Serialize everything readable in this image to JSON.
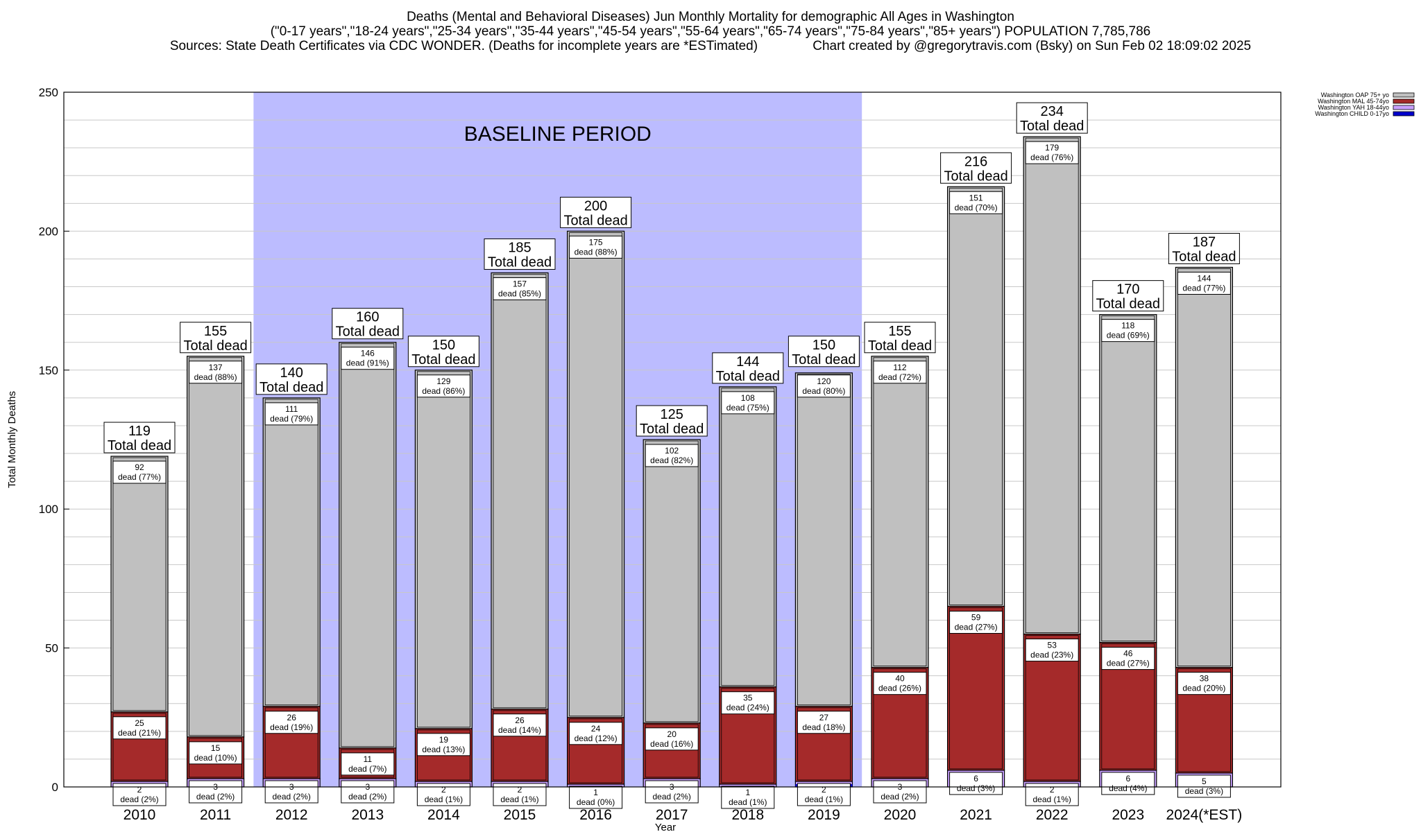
{
  "chart_data": {
    "type": "bar",
    "stacked": true,
    "title": "Deaths (Mental and Behavioral Diseases) Jun Monthly Mortality for demographic All Ages in Washington",
    "subtitle": "(\"0-17 years\",\"18-24 years\",\"25-34 years\",\"35-44 years\",\"45-54 years\",\"55-64 years\",\"65-74 years\",\"75-84 years\",\"85+ years\") POPULATION 7,785,786",
    "sources": "Sources: State Death Certificates via CDC WONDER. (Deaths for incomplete years are *ESTimated)",
    "credit": "Chart created by @gregorytravis.com (Bsky) on Sun Feb 02 18:09:02 2025",
    "xlabel": "Year",
    "ylabel": "Total Monthly Deaths",
    "ylim": [
      0,
      250
    ],
    "yticks": [
      0,
      50,
      100,
      150,
      200,
      250
    ],
    "grid": true,
    "legend_position": "top-right",
    "baseline_label": "BASELINE PERIOD",
    "baseline_range": [
      "2012",
      "2019"
    ],
    "categories": [
      "2010",
      "2011",
      "2012",
      "2013",
      "2014",
      "2015",
      "2016",
      "2017",
      "2018",
      "2019",
      "2020",
      "2021",
      "2022",
      "2023",
      "2024(*EST)"
    ],
    "totals": [
      119,
      155,
      140,
      160,
      150,
      185,
      200,
      125,
      144,
      150,
      155,
      216,
      234,
      170,
      187
    ],
    "total_caption": "Total dead",
    "series": [
      {
        "name": "Washington CHILD 0-17yo",
        "color": "#0000cc",
        "values": [
          0,
          0,
          0,
          0,
          0,
          0,
          0,
          0,
          0,
          1,
          0,
          0,
          0,
          0,
          0
        ],
        "labels": []
      },
      {
        "name": "Washington YAH 18-44yo",
        "color": "#c8a0ff",
        "values": [
          2,
          3,
          3,
          3,
          2,
          2,
          1,
          3,
          1,
          2,
          3,
          6,
          2,
          6,
          5
        ],
        "labels": [
          "dead (2%)",
          "dead (2%)",
          "dead (2%)",
          "dead (2%)",
          "dead (1%)",
          "dead (1%)",
          "dead (0%)",
          "dead (2%)",
          "dead (1%)",
          "dead (1%)",
          "dead (2%)",
          "dead (3%)",
          "dead (1%)",
          "dead (4%)",
          "dead (3%)"
        ]
      },
      {
        "name": "Washington MAL 45-74yo",
        "color": "#a52a2a",
        "values": [
          25,
          15,
          26,
          11,
          19,
          26,
          24,
          20,
          35,
          27,
          40,
          59,
          53,
          46,
          38
        ],
        "labels": [
          "dead (21%)",
          "dead (10%)",
          "dead (19%)",
          "dead (7%)",
          "dead (13%)",
          "dead (14%)",
          "dead (12%)",
          "dead (16%)",
          "dead (24%)",
          "dead (18%)",
          "dead (26%)",
          "dead (27%)",
          "dead (23%)",
          "dead (27%)",
          "dead (20%)"
        ]
      },
      {
        "name": "Washington OAP 75+ yo",
        "color": "#c0c0c0",
        "values": [
          92,
          137,
          111,
          146,
          129,
          157,
          175,
          102,
          108,
          120,
          112,
          151,
          179,
          118,
          144
        ],
        "labels": [
          "dead (77%)",
          "dead (88%)",
          "dead (79%)",
          "dead (91%)",
          "dead (86%)",
          "dead (85%)",
          "dead (88%)",
          "dead (82%)",
          "dead (75%)",
          "dead (80%)",
          "dead (72%)",
          "dead (70%)",
          "dead (76%)",
          "dead (69%)",
          "dead (77%)"
        ]
      }
    ],
    "colors": {
      "baseline": "#bcbcff",
      "grid": "#c8c8c8",
      "frame": "#000000"
    }
  }
}
